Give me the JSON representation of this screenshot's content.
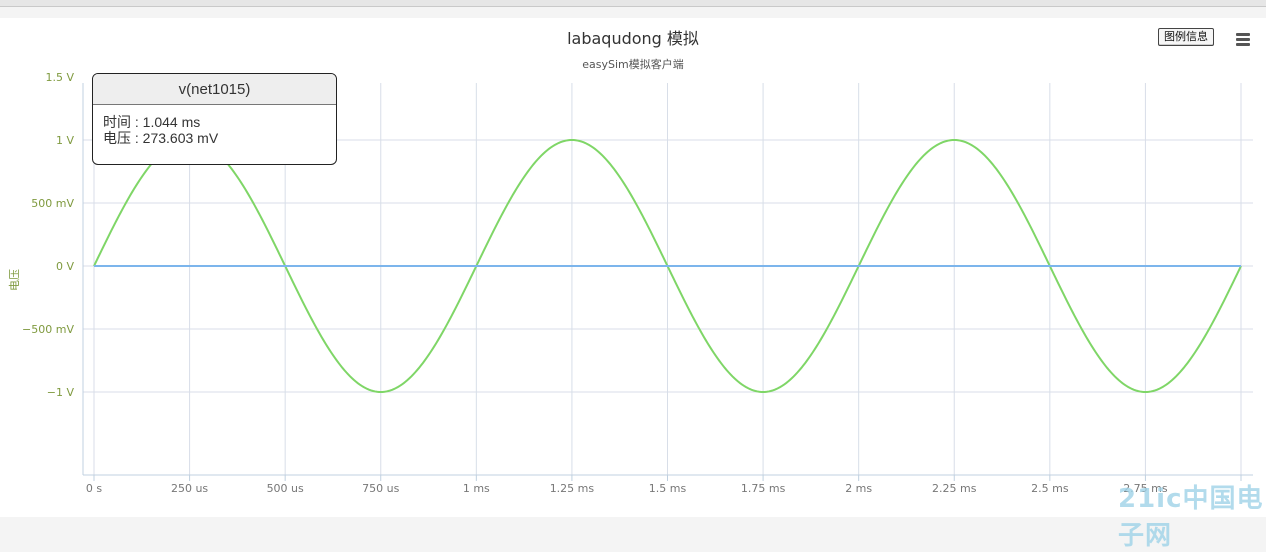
{
  "window": {
    "title": "labaqudong 模拟",
    "subtitle": "easySim模拟客户端"
  },
  "toolbar": {
    "legend_button_label": "图例信息",
    "menu_icon": "hamburger-menu-icon"
  },
  "tooltip": {
    "title": "v(net1015)",
    "time_line": "时间 : 1.044 ms",
    "voltage_line": "电压 : 273.603 mV"
  },
  "watermark": {
    "text": "21ic中国电子网"
  },
  "colors": {
    "sine": "#7fd667",
    "flat": "#7cb5ec",
    "grid": "#d8dee8",
    "axis_label": "#7f9a3f"
  },
  "chart_data": {
    "type": "line",
    "title": "labaqudong 模拟",
    "subtitle": "easySim模拟客户端",
    "xlabel": "",
    "ylabel": "电压",
    "xlim": [
      0,
      3
    ],
    "x_unit": "ms",
    "ylim": [
      -1.5,
      1.5
    ],
    "y_unit": "V",
    "x_tick_values": [
      0,
      0.25,
      0.5,
      0.75,
      1,
      1.25,
      1.5,
      1.75,
      2,
      2.25,
      2.5,
      2.75
    ],
    "x_tick_labels": [
      "0 s",
      "250 us",
      "500 us",
      "750 us",
      "1 ms",
      "1.25 ms",
      "1.5 ms",
      "1.75 ms",
      "2 ms",
      "2.25 ms",
      "2.5 ms",
      "2.75 ms"
    ],
    "y_tick_values": [
      -1,
      -0.5,
      0,
      0.5,
      1,
      1.5
    ],
    "y_tick_labels": [
      "−1 V",
      "−500 mV",
      "0 V",
      "500 mV",
      "1 V",
      "1.5 V"
    ],
    "grid": true,
    "series": [
      {
        "color": "#7fd667",
        "x": [
          0,
          0.125,
          0.25,
          0.375,
          0.5,
          0.625,
          0.75,
          0.875,
          1,
          1.125,
          1.25,
          1.375,
          1.5,
          1.625,
          1.75,
          1.875,
          2,
          2.125,
          2.25,
          2.375,
          2.5,
          2.625,
          2.75,
          2.875,
          3
        ],
        "y": [
          0,
          0.707,
          1,
          0.707,
          0,
          -0.707,
          -1,
          -0.707,
          0,
          0.707,
          1,
          0.707,
          0,
          -0.707,
          -1,
          -0.707,
          0,
          0.707,
          1,
          0.707,
          0,
          -0.707,
          -1,
          -0.707,
          0
        ]
      },
      {
        "color": "#7cb5ec",
        "x": [
          0,
          3
        ],
        "y": [
          0,
          0
        ]
      }
    ]
  }
}
